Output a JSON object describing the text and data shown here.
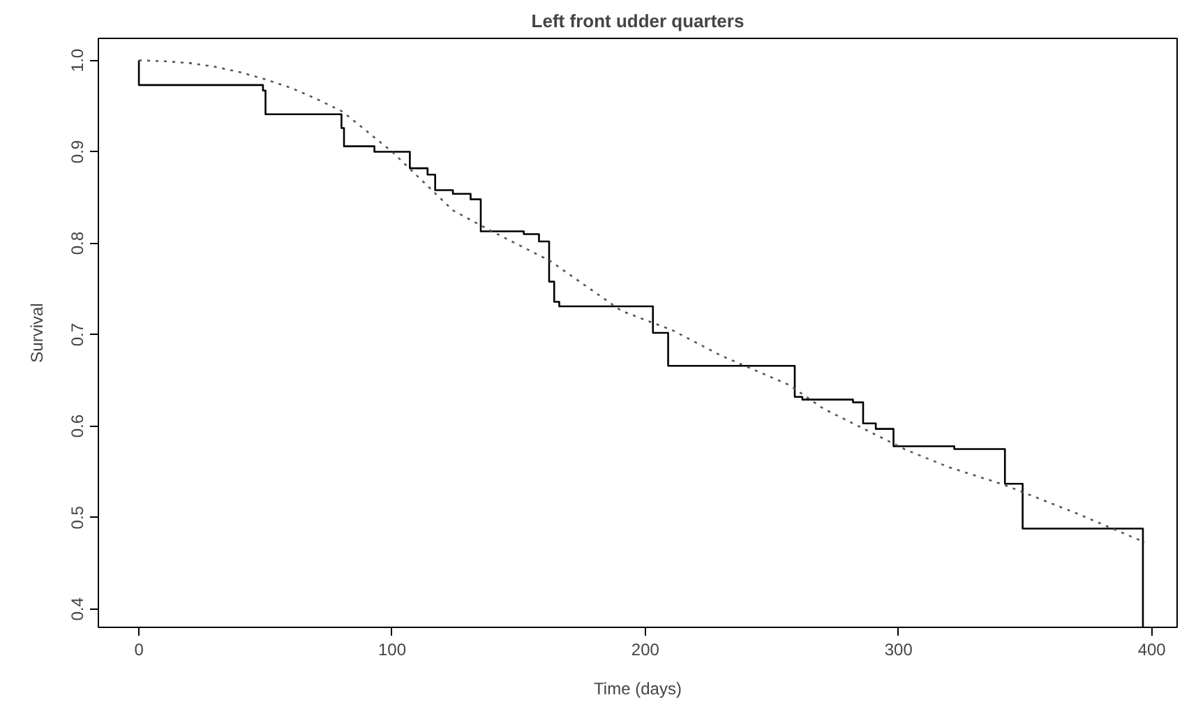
{
  "chart_data": {
    "type": "step",
    "title": "Left front udder quarters",
    "xlabel": "Time (days)",
    "ylabel": "Survival",
    "xlim": [
      -16,
      410
    ],
    "ylim": [
      0.38,
      1.024
    ],
    "xticks": [
      0,
      100,
      200,
      300,
      400
    ],
    "yticks": [
      0.4,
      0.5,
      0.6,
      0.7,
      0.8,
      0.9,
      {
        "value": 1.0,
        "label": "1.0"
      }
    ],
    "grid": false,
    "series": [
      {
        "color": "#000000",
        "line_style": "solid",
        "x": [
          0,
          0,
          49,
          50,
          80,
          81,
          93,
          107,
          114,
          117,
          124,
          131,
          135,
          152,
          158,
          162,
          164,
          166,
          203,
          209,
          259,
          262,
          282,
          286,
          291,
          298,
          322,
          342,
          349,
          396.5
        ],
        "values": [
          1.0,
          0.973,
          0.967,
          0.941,
          0.926,
          0.906,
          0.9,
          0.882,
          0.875,
          0.858,
          0.854,
          0.848,
          0.813,
          0.81,
          0.802,
          0.758,
          0.736,
          0.731,
          0.702,
          0.666,
          0.632,
          0.629,
          0.626,
          0.603,
          0.597,
          0.578,
          0.575,
          0.537,
          0.488,
          0.38
        ]
      },
      {
        "type": "line",
        "color": "#555555",
        "line_style": "dotted",
        "x": [
          0,
          10,
          20,
          30,
          40,
          49,
          60,
          70,
          80.4,
          100,
          124,
          138.7,
          162.2,
          190.6,
          210.6,
          230,
          256.8,
          270.4,
          303,
          320,
          341.5,
          370,
          397.2
        ],
        "values": [
          1.0,
          0.999,
          0.997,
          0.993,
          0.987,
          0.98,
          0.97,
          0.958,
          0.944,
          0.9,
          0.836,
          0.814,
          0.781,
          0.726,
          0.705,
          0.677,
          0.645,
          0.619,
          0.574,
          0.555,
          0.536,
          0.505,
          0.473
        ]
      }
    ]
  }
}
